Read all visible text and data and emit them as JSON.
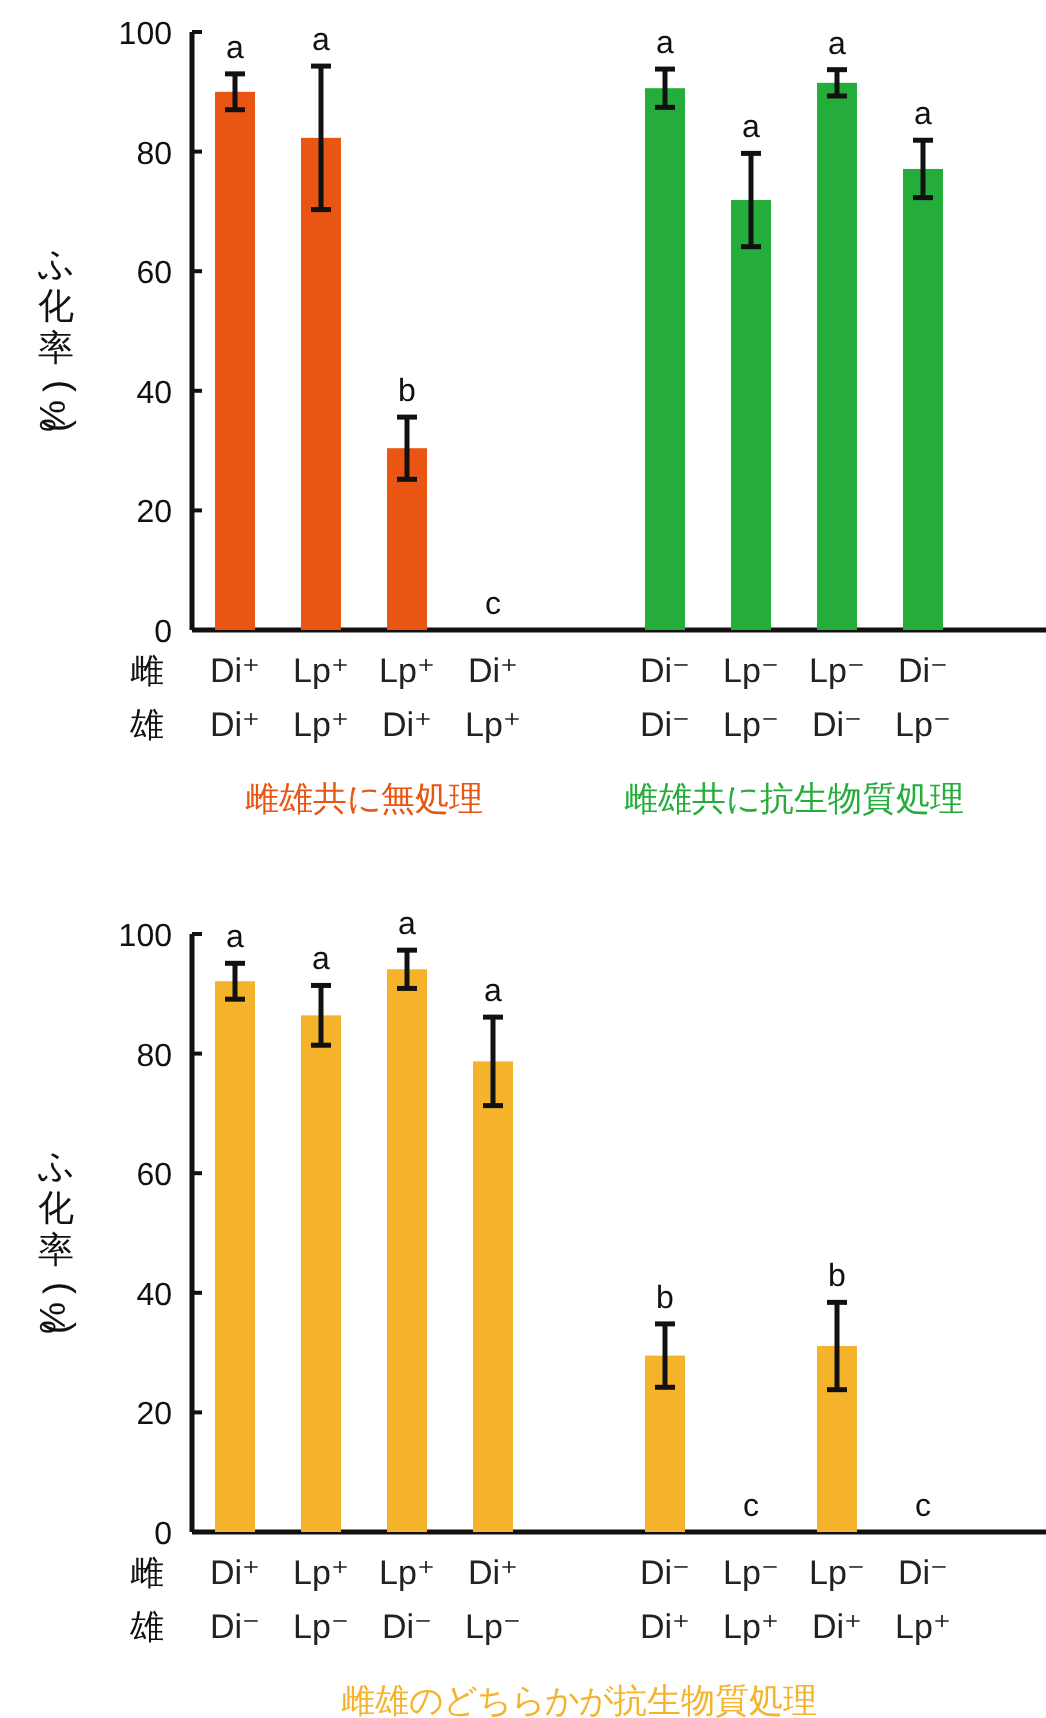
{
  "chart_data": [
    {
      "type": "bar",
      "ylabel": "ふ化率(%)",
      "categories": [
        "Di⁺\nDi⁺",
        "Lp⁺\nLp⁺",
        "Lp⁺\nDi⁺",
        "Di⁺\nLp⁺",
        null,
        "Di⁻\nDi⁻",
        "Lp⁻\nLp⁻",
        "Lp⁻\nDi⁻",
        "Di⁻\nLp⁻"
      ],
      "series": [
        {
          "name": "雌雄共に無処理",
          "color": "#e95513",
          "values": [
            90,
            82.3,
            30.4,
            0,
            null,
            null,
            null,
            null,
            null
          ],
          "errors": [
            3,
            12,
            5.2,
            null,
            null,
            null,
            null,
            null,
            null
          ],
          "value_labels": [
            "a",
            "a",
            "b",
            "c",
            null,
            null,
            null,
            null,
            null
          ]
        },
        {
          "name": "雌雄共に抗生物質処理",
          "color": "#24ad3a",
          "values": [
            null,
            null,
            null,
            null,
            null,
            90.6,
            71.9,
            91.5,
            77.1
          ],
          "errors": [
            null,
            null,
            null,
            null,
            null,
            3.2,
            7.8,
            2.2,
            4.8
          ],
          "value_labels": [
            null,
            null,
            null,
            null,
            null,
            "a",
            "a",
            "a",
            "a"
          ]
        }
      ],
      "ylim": [
        0,
        100
      ],
      "yticks": [
        0,
        20,
        40,
        60,
        80,
        100
      ],
      "annotations": [
        "雌",
        "雄"
      ]
    },
    {
      "type": "bar",
      "ylabel": "ふ化率(%)",
      "categories": [
        "Di⁺\nDi⁻",
        "Lp⁺\nLp⁻",
        "Lp⁺\nDi⁻",
        "Di⁺\nLp⁻",
        null,
        "Di⁻\nDi⁺",
        "Lp⁻\nLp⁺",
        "Lp⁻\nDi⁺",
        "Di⁻\nLp⁺"
      ],
      "series": [
        {
          "name": "雌雄のどちらかが抗生物質処理",
          "color": "#f5b32b",
          "values": [
            92.1,
            86.4,
            94.1,
            78.7,
            null,
            29.5,
            0,
            31.1,
            0
          ],
          "errors": [
            3,
            5,
            3.2,
            7.4,
            null,
            5.3,
            null,
            7.3,
            null
          ],
          "value_labels": [
            "a",
            "a",
            "a",
            "a",
            null,
            "b",
            "c",
            "b",
            "c"
          ]
        }
      ],
      "ylim": [
        0,
        100
      ],
      "yticks": [
        0,
        20,
        40,
        60,
        80,
        100
      ],
      "annotations": [
        "雌",
        "雄"
      ]
    }
  ]
}
